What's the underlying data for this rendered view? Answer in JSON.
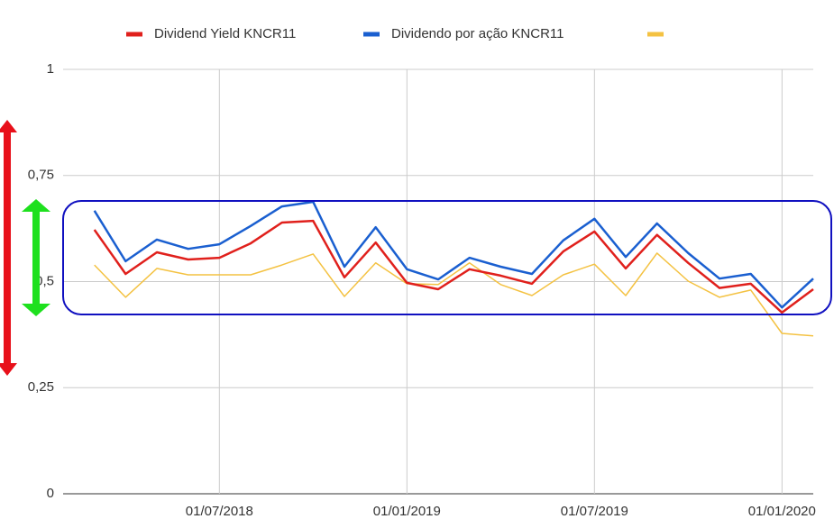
{
  "chart_data": {
    "type": "line",
    "x": [
      "01/03/2018",
      "01/04/2018",
      "01/05/2018",
      "01/06/2018",
      "01/07/2018",
      "01/08/2018",
      "01/09/2018",
      "01/10/2018",
      "01/11/2018",
      "01/12/2018",
      "01/01/2019",
      "01/02/2019",
      "01/03/2019",
      "01/04/2019",
      "01/05/2019",
      "01/06/2019",
      "01/07/2019",
      "01/08/2019",
      "01/09/2019",
      "01/10/2019",
      "01/11/2019",
      "01/12/2019",
      "01/01/2020",
      "01/02/2020"
    ],
    "series": [
      {
        "name": "Dividend Yield KNCR11",
        "color": "#e0201c",
        "values": [
          0.622,
          0.518,
          0.569,
          0.552,
          0.556,
          0.59,
          0.639,
          0.643,
          0.51,
          0.592,
          0.497,
          0.482,
          0.529,
          0.514,
          0.495,
          0.571,
          0.618,
          0.531,
          0.61,
          0.544,
          0.485,
          0.495,
          0.427,
          0.482
        ]
      },
      {
        "name": "Dividendo por ação KNCR11",
        "color": "#1a5fd0",
        "values": [
          0.667,
          0.548,
          0.599,
          0.577,
          0.588,
          0.631,
          0.677,
          0.688,
          0.535,
          0.628,
          0.529,
          0.505,
          0.556,
          0.535,
          0.518,
          0.597,
          0.648,
          0.558,
          0.637,
          0.567,
          0.507,
          0.518,
          0.439,
          0.507
        ]
      },
      {
        "color": "#f4c242",
        "values": [
          0.539,
          0.463,
          0.531,
          0.516,
          0.516,
          0.516,
          0.539,
          0.565,
          0.465,
          0.544,
          0.495,
          0.493,
          0.544,
          0.493,
          0.467,
          0.516,
          0.541,
          0.467,
          0.567,
          0.501,
          0.463,
          0.48,
          0.378,
          0.372
        ]
      }
    ],
    "xlim": [
      "01/02/2018",
      "01/02/2020"
    ],
    "xticks": [
      "01/07/2018",
      "01/01/2019",
      "01/07/2019",
      "01/01/2020"
    ],
    "ylim": [
      0,
      1
    ],
    "yticks": [
      0,
      {
        "value": 0.25,
        "label": "0,25"
      },
      {
        "value": 0.5,
        "label": "0,5"
      },
      {
        "value": 0.75,
        "label": "0,75"
      },
      1
    ],
    "grid": true
  }
}
